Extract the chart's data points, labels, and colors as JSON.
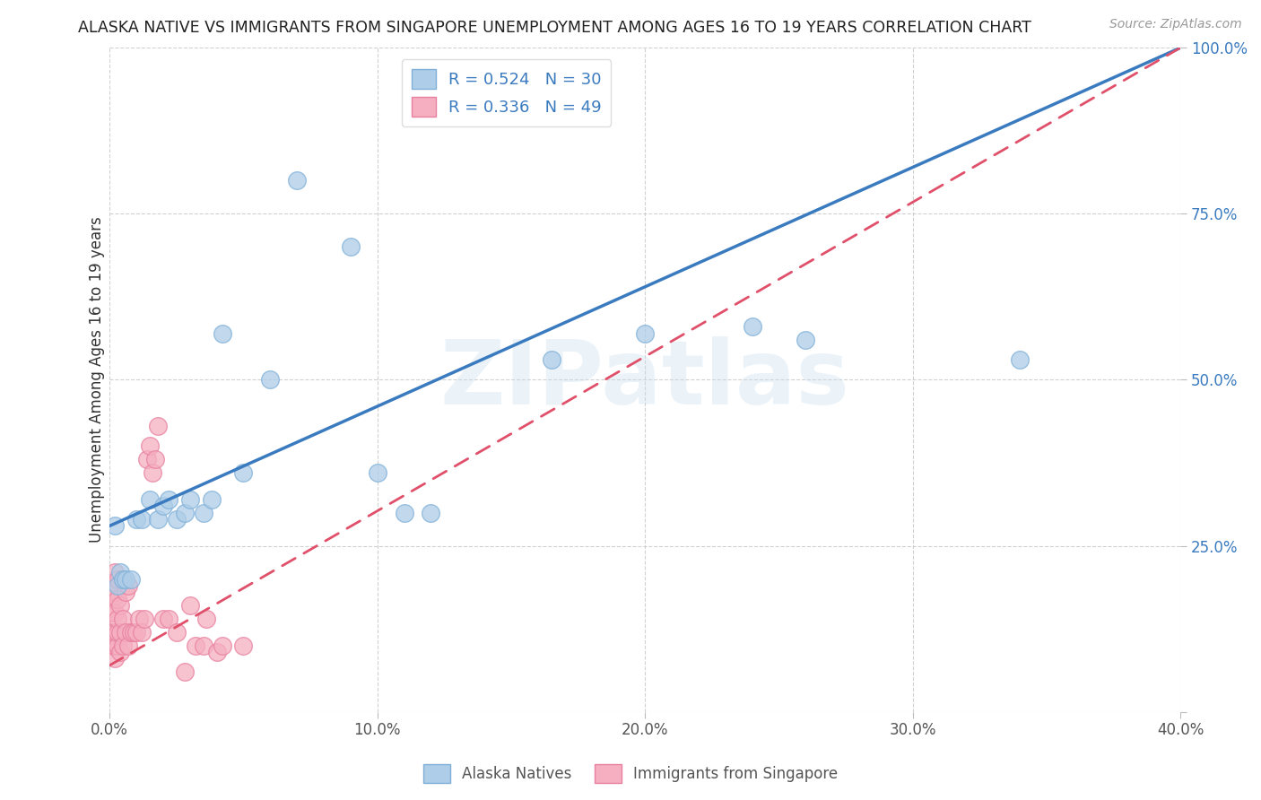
{
  "title": "ALASKA NATIVE VS IMMIGRANTS FROM SINGAPORE UNEMPLOYMENT AMONG AGES 16 TO 19 YEARS CORRELATION CHART",
  "source": "Source: ZipAtlas.com",
  "ylabel": "Unemployment Among Ages 16 to 19 years",
  "xlim": [
    0.0,
    0.4
  ],
  "ylim": [
    0.0,
    1.0
  ],
  "xticks": [
    0.0,
    0.1,
    0.2,
    0.3,
    0.4
  ],
  "yticks": [
    0.0,
    0.25,
    0.5,
    0.75,
    1.0
  ],
  "xticklabels": [
    "0.0%",
    "10.0%",
    "20.0%",
    "30.0%",
    "40.0%"
  ],
  "yticklabels": [
    "",
    "25.0%",
    "50.0%",
    "75.0%",
    "100.0%"
  ],
  "alaska_color": "#aecde8",
  "singapore_color": "#f5afc0",
  "alaska_edge_color": "#80b0d8",
  "singapore_edge_color": "#e880a0",
  "regression_blue_color": "#3a7abf",
  "regression_pink_color": "#e0506a",
  "grid_color": "#cccccc",
  "background_color": "#ffffff",
  "legend_R_alaska": "R = 0.524",
  "legend_N_alaska": "N = 30",
  "legend_R_singapore": "R = 0.336",
  "legend_N_singapore": "N = 49",
  "legend_label_alaska": "Alaska Natives",
  "legend_label_singapore": "Immigrants from Singapore",
  "watermark_text": "ZIPatlas",
  "blue_line_x0": 0.0,
  "blue_line_y0": 0.28,
  "blue_line_x1": 0.4,
  "blue_line_y1": 1.0,
  "pink_line_x0": 0.0,
  "pink_line_y0": 0.07,
  "pink_line_x1": 0.4,
  "pink_line_y1": 1.0,
  "alaska_x": [
    0.002,
    0.003,
    0.004,
    0.005,
    0.006,
    0.008,
    0.01,
    0.012,
    0.015,
    0.018,
    0.02,
    0.022,
    0.025,
    0.028,
    0.03,
    0.035,
    0.038,
    0.042,
    0.05,
    0.06,
    0.07,
    0.09,
    0.1,
    0.11,
    0.12,
    0.165,
    0.2,
    0.24,
    0.26,
    0.34
  ],
  "alaska_y": [
    0.28,
    0.19,
    0.21,
    0.2,
    0.2,
    0.2,
    0.29,
    0.29,
    0.32,
    0.29,
    0.31,
    0.32,
    0.29,
    0.3,
    0.32,
    0.3,
    0.32,
    0.57,
    0.36,
    0.5,
    0.8,
    0.7,
    0.36,
    0.3,
    0.3,
    0.53,
    0.57,
    0.58,
    0.56,
    0.53
  ],
  "singapore_x": [
    0.0,
    0.001,
    0.001,
    0.001,
    0.001,
    0.001,
    0.002,
    0.002,
    0.002,
    0.002,
    0.002,
    0.002,
    0.003,
    0.003,
    0.003,
    0.003,
    0.003,
    0.004,
    0.004,
    0.004,
    0.005,
    0.005,
    0.005,
    0.006,
    0.006,
    0.007,
    0.007,
    0.008,
    0.009,
    0.01,
    0.011,
    0.012,
    0.013,
    0.014,
    0.015,
    0.016,
    0.017,
    0.018,
    0.02,
    0.022,
    0.025,
    0.028,
    0.03,
    0.032,
    0.035,
    0.036,
    0.04,
    0.042,
    0.05
  ],
  "singapore_y": [
    0.1,
    0.1,
    0.12,
    0.15,
    0.17,
    0.19,
    0.08,
    0.1,
    0.12,
    0.15,
    0.18,
    0.21,
    0.1,
    0.12,
    0.14,
    0.17,
    0.2,
    0.09,
    0.12,
    0.16,
    0.1,
    0.14,
    0.2,
    0.12,
    0.18,
    0.1,
    0.19,
    0.12,
    0.12,
    0.12,
    0.14,
    0.12,
    0.14,
    0.38,
    0.4,
    0.36,
    0.38,
    0.43,
    0.14,
    0.14,
    0.12,
    0.06,
    0.16,
    0.1,
    0.1,
    0.14,
    0.09,
    0.1,
    0.1
  ]
}
